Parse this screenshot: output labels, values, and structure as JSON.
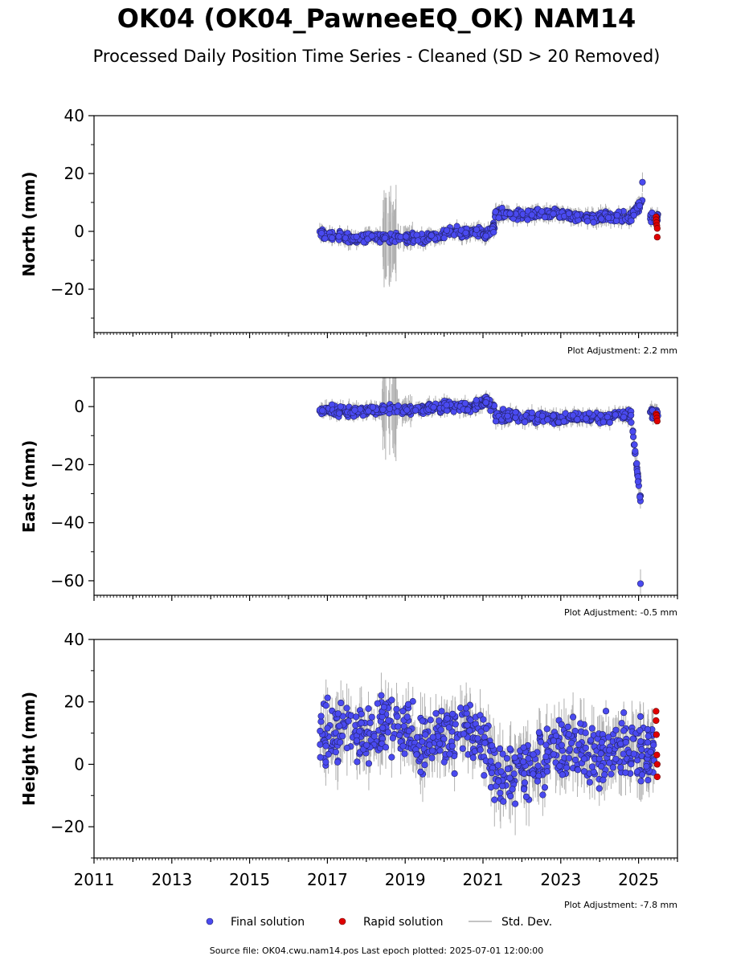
{
  "title": "OK04 (OK04_PawneeEQ_OK) NAM14",
  "subtitle": "Processed Daily Position Time Series - Cleaned (SD > 20 Removed)",
  "source_line": "Source file: OK04.cwu.nam14.pos  Last epoch plotted: 2025-07-01 12:00:00",
  "legend": {
    "final": "Final solution",
    "rapid": "Rapid solution",
    "std": "Std. Dev."
  },
  "colors": {
    "final": "#4a4af0",
    "rapid": "#e00000",
    "std": "#b0b0b0"
  },
  "chart_data": [
    {
      "type": "scatter",
      "ylabel": "North (mm)",
      "adjustment": "Plot Adjustment: 2.2 mm",
      "xlim": [
        2011,
        2026
      ],
      "ylim": [
        -35,
        40
      ],
      "yticks": [
        40,
        20,
        0,
        -20
      ],
      "ytick_labels": [
        "40",
        "20",
        "0",
        "−20"
      ],
      "series": [
        {
          "name": "Final solution",
          "x": [
            2016.8,
            2017.2,
            2017.6,
            2018.0,
            2018.4,
            2018.8,
            2019.2,
            2019.6,
            2020.0,
            2020.4,
            2020.8,
            2021.05,
            2021.3,
            2021.6,
            2022.0,
            2022.4,
            2022.8,
            2023.2,
            2023.6,
            2024.0,
            2024.4,
            2024.8,
            2025.1,
            2025.3
          ],
          "y": [
            -1,
            -2,
            -2.5,
            -2,
            -2,
            -2,
            -2.5,
            -2,
            -0.5,
            0,
            0,
            -2,
            6,
            6,
            5.5,
            6,
            6,
            5,
            5,
            5,
            5,
            4.5,
            17,
            5
          ],
          "std": [
            2,
            2,
            2,
            2,
            12,
            3,
            2,
            2,
            2,
            2,
            2,
            2,
            2,
            2,
            2,
            2,
            2,
            2,
            2,
            2,
            2,
            2,
            6,
            2
          ]
        },
        {
          "name": "Rapid solution",
          "x": [
            2025.45,
            2025.45,
            2025.46,
            2025.47,
            2025.48,
            2025.48
          ],
          "y": [
            5,
            4,
            3,
            2,
            1,
            -2
          ],
          "std": [
            1,
            1,
            1,
            1,
            1,
            1
          ]
        }
      ]
    },
    {
      "type": "scatter",
      "ylabel": "East (mm)",
      "adjustment": "Plot Adjustment: -0.5 mm",
      "xlim": [
        2011,
        2026
      ],
      "ylim": [
        -65,
        10
      ],
      "yticks": [
        0,
        -20,
        -40,
        -60
      ],
      "ytick_labels": [
        "0",
        "−20",
        "−40",
        "−60"
      ],
      "series": [
        {
          "name": "Final solution",
          "x": [
            2016.8,
            2017.2,
            2017.6,
            2018.0,
            2018.4,
            2018.8,
            2019.2,
            2019.6,
            2020.0,
            2020.4,
            2020.8,
            2021.0,
            2021.3,
            2021.6,
            2022.0,
            2022.4,
            2022.8,
            2023.2,
            2023.6,
            2024.0,
            2024.4,
            2024.8,
            2025.05,
            2025.3
          ],
          "y": [
            -1,
            -2,
            -1.5,
            -1,
            -1,
            -1,
            -1,
            -0.5,
            0,
            0,
            0.5,
            2,
            -3,
            -3.5,
            -4,
            -3.5,
            -4,
            -3,
            -3.5,
            -4,
            -3,
            -3,
            -61,
            -2.5
          ],
          "std": [
            2,
            2,
            2,
            2,
            12,
            3,
            2,
            2,
            2,
            2,
            2,
            2,
            2,
            2,
            2,
            2,
            2,
            2,
            2,
            2,
            2,
            2,
            6,
            2
          ]
        },
        {
          "name": "Rapid solution",
          "x": [
            2025.45,
            2025.46,
            2025.47,
            2025.48
          ],
          "y": [
            -2.5,
            -3,
            -4,
            -5
          ],
          "std": [
            1,
            1,
            1,
            1
          ]
        }
      ]
    },
    {
      "type": "scatter",
      "ylabel": "Height (mm)",
      "adjustment": "Plot Adjustment: -7.8 mm",
      "xlim": [
        2011,
        2026
      ],
      "ylim": [
        -30,
        40
      ],
      "yticks": [
        40,
        20,
        0,
        -20
      ],
      "ytick_labels": [
        "40",
        "20",
        "0",
        "−20"
      ],
      "xticks": [
        2011,
        2013,
        2015,
        2017,
        2019,
        2021,
        2023,
        2025
      ],
      "xtick_labels": [
        "2011",
        "2013",
        "2015",
        "2017",
        "2019",
        "2021",
        "2023",
        "2025"
      ],
      "series": [
        {
          "name": "Final solution",
          "x": [
            2016.8,
            2017.2,
            2017.6,
            2018.0,
            2018.4,
            2018.8,
            2019.2,
            2019.6,
            2020.0,
            2020.4,
            2020.8,
            2021.2,
            2021.6,
            2022.0,
            2022.4,
            2022.8,
            2023.2,
            2023.6,
            2024.0,
            2024.4,
            2024.8,
            2025.2
          ],
          "y": [
            8,
            10,
            11,
            9,
            14,
            12,
            6,
            8,
            9,
            10,
            10,
            -3,
            -2,
            -1,
            2,
            3,
            5,
            4,
            3,
            4,
            5,
            4
          ],
          "std": [
            6,
            6,
            6,
            6,
            6,
            6,
            6,
            6,
            6,
            6,
            6,
            7,
            7,
            7,
            7,
            7,
            7,
            7,
            7,
            7,
            7,
            7
          ]
        },
        {
          "name": "Rapid solution",
          "x": [
            2025.45,
            2025.45,
            2025.46,
            2025.47,
            2025.48,
            2025.48
          ],
          "y": [
            17,
            14,
            9.5,
            3,
            0,
            -4
          ],
          "std": [
            1,
            1,
            1,
            1,
            1,
            1
          ]
        }
      ]
    }
  ]
}
